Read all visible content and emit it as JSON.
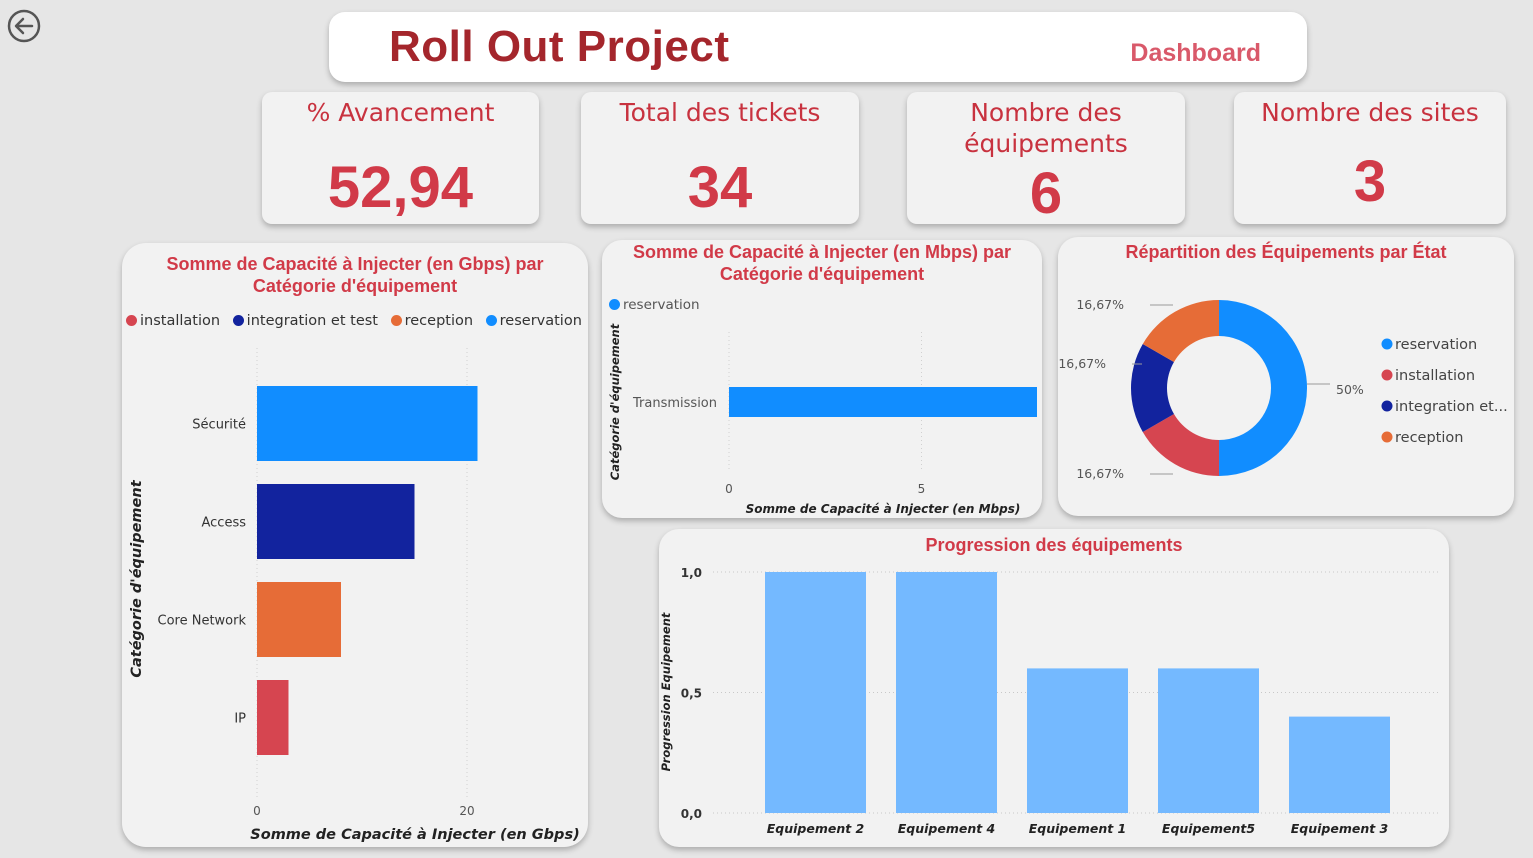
{
  "header": {
    "title": "Roll Out Project",
    "subtitle": "Dashboard"
  },
  "kpis": {
    "avancement": {
      "label": "% Avancement",
      "value": "52,94"
    },
    "tickets": {
      "label": "Total des tickets",
      "value": "34"
    },
    "equipements": {
      "label_line1": "Nombre des",
      "label_line2": "équipements",
      "value": "6"
    },
    "sites": {
      "label": "Nombre des sites",
      "value": "3"
    }
  },
  "colors": {
    "installation": "#d64550",
    "integration": "#12239e",
    "reception": "#e66c37",
    "reservation": "#118dff",
    "progress_bar": "#74b9ff"
  },
  "chart_data": [
    {
      "type": "bar",
      "orientation": "horizontal",
      "title": "Somme de Capacité à Injecter (en Gbps) par Catégorie d'équipement",
      "xlabel": "Somme de Capacité à Injecter (en Gbps)",
      "ylabel": "Catégorie d'équipement",
      "legend": [
        "installation",
        "integration et test",
        "reception",
        "reservation"
      ],
      "legend_position": "top",
      "categories": [
        "Sécurité",
        "Access",
        "Core Network",
        "IP"
      ],
      "values": [
        21,
        15,
        8,
        3
      ],
      "series_of_bar": [
        "reservation",
        "integration et test",
        "reception",
        "installation"
      ],
      "xlim": [
        0,
        29
      ],
      "xticks": [
        0,
        20
      ]
    },
    {
      "type": "bar",
      "orientation": "horizontal",
      "title": "Somme de Capacité à Injecter (en Mbps) par Catégorie d'équipement",
      "xlabel": "Somme de Capacité à Injecter (en Mbps)",
      "ylabel": "Catégorie d'équipement",
      "legend": [
        "reservation"
      ],
      "legend_position": "top",
      "categories": [
        "Transmission"
      ],
      "values": [
        8
      ],
      "xlim": [
        0,
        8
      ],
      "xticks": [
        0,
        5
      ]
    },
    {
      "type": "pie",
      "variant": "donut",
      "title": "Répartition des Équipements par État",
      "legend_position": "right",
      "legend": [
        "reservation",
        "installation",
        "integration et...",
        "reception"
      ],
      "slices": [
        {
          "name": "reservation",
          "value": 50,
          "label": "50%"
        },
        {
          "name": "installation",
          "value": 16.67,
          "label": "16,67%"
        },
        {
          "name": "integration et test",
          "value": 16.67,
          "label": "16,67%"
        },
        {
          "name": "reception",
          "value": 16.67,
          "label": "16,67%"
        }
      ]
    },
    {
      "type": "bar",
      "orientation": "vertical",
      "title": "Progression des équipements",
      "xlabel": "",
      "ylabel": "Progression Equipement",
      "categories": [
        "Equipement 2",
        "Equipement 4",
        "Equipement 1",
        "Equipement5",
        "Equipement 3"
      ],
      "values": [
        1.0,
        1.0,
        0.6,
        0.6,
        0.4
      ],
      "ylim": [
        0,
        1
      ],
      "yticks": [
        "0,0",
        "0,5",
        "1,0"
      ],
      "grid": true
    }
  ]
}
